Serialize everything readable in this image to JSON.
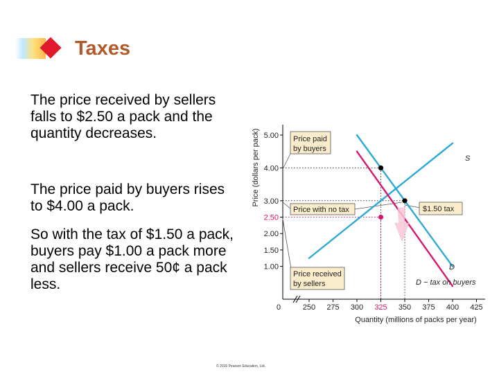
{
  "title": "Taxes",
  "paragraphs": [
    "The price received by sellers falls to $2.50 a pack and the quantity decreases.",
    "The price paid by buyers rises to $4.00 a pack.",
    "So with the tax of $1.50 a pack, buyers pay $1.00 a pack more and sellers receive 50¢ a pack less."
  ],
  "footer": "© 2016 Pearson Education, Ltd.",
  "chart_data": {
    "type": "line",
    "xlabel": "Quantity (millions of packs per year)",
    "ylabel": "Price (dollars per pack)",
    "x_ticks": [
      "0",
      "250",
      "275",
      "300",
      "325",
      "350",
      "375",
      "400",
      "425"
    ],
    "y_ticks": [
      {
        "value": 1.0,
        "label": "1.00"
      },
      {
        "value": 1.5,
        "label": "1.50"
      },
      {
        "value": 2.0,
        "label": "2.00"
      },
      {
        "value": 2.5,
        "label": "2.50"
      },
      {
        "value": 3.0,
        "label": "3.00"
      },
      {
        "value": 4.0,
        "label": "4.00"
      },
      {
        "value": 5.0,
        "label": "5.00"
      }
    ],
    "xlim": [
      240,
      430
    ],
    "ylim": [
      0,
      5.5
    ],
    "series": [
      {
        "name": "S",
        "color": "#2aa9d6",
        "points": [
          [
            250,
            1.25
          ],
          [
            400,
            4.75
          ]
        ]
      },
      {
        "name": "D",
        "color": "#2aa9d6",
        "points": [
          [
            300,
            5.0
          ],
          [
            400,
            1.0
          ]
        ]
      },
      {
        "name": "D − tax on buyers",
        "color": "#d4186e",
        "points": [
          [
            300,
            4.5
          ],
          [
            400,
            0.4
          ]
        ]
      }
    ],
    "points": [
      {
        "x": 325,
        "y": 4.0,
        "color": "#000000"
      },
      {
        "x": 350,
        "y": 3.0,
        "color": "#000000"
      },
      {
        "x": 325,
        "y": 2.5,
        "color": "#d4186e"
      }
    ],
    "callouts": {
      "price_paid": "Price paid by buyers",
      "no_tax": "Price with no tax",
      "tax": "$1.50 tax",
      "received": "Price received by sellers"
    },
    "highlight_tick_x": "325",
    "highlight_tick_y": "2.50",
    "colors": {
      "supply": "#2aa9d6",
      "tax_demand": "#d4186e",
      "callout_bg": "#fbeccc"
    }
  }
}
